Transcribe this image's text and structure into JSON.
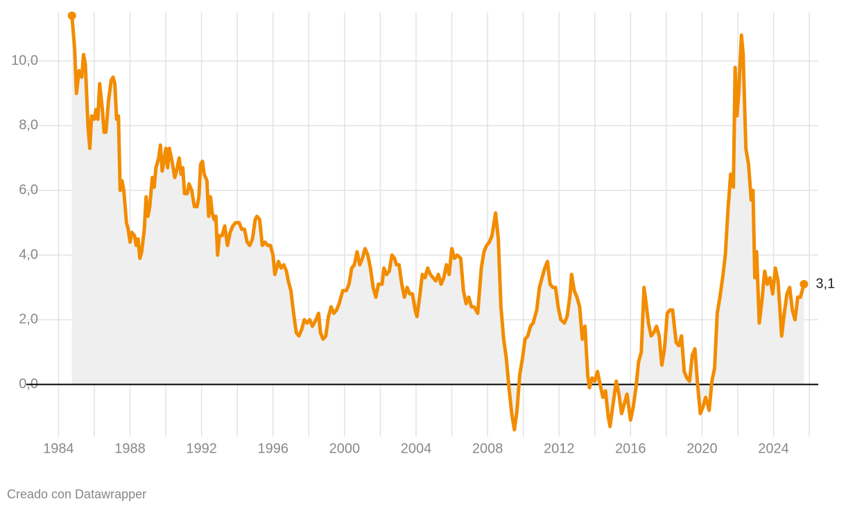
{
  "chart_data": {
    "type": "area-line",
    "x": [
      1984.75,
      1984.9,
      1985.0,
      1985.15,
      1985.3,
      1985.4,
      1985.5,
      1985.65,
      1985.75,
      1985.85,
      1986.0,
      1986.1,
      1986.2,
      1986.3,
      1986.45,
      1986.55,
      1986.65,
      1986.8,
      1986.95,
      1987.05,
      1987.15,
      1987.25,
      1987.35,
      1987.45,
      1987.55,
      1987.65,
      1987.8,
      1987.9,
      1988.0,
      1988.1,
      1988.25,
      1988.35,
      1988.45,
      1988.55,
      1988.65,
      1988.8,
      1988.9,
      1989.0,
      1989.1,
      1989.25,
      1989.35,
      1989.45,
      1989.6,
      1989.7,
      1989.8,
      1989.9,
      1990.0,
      1990.1,
      1990.2,
      1990.35,
      1990.5,
      1990.6,
      1990.75,
      1990.85,
      1990.95,
      1991.05,
      1991.2,
      1991.3,
      1991.45,
      1991.6,
      1991.75,
      1991.85,
      1991.95,
      1992.05,
      1992.15,
      1992.3,
      1992.4,
      1992.5,
      1992.6,
      1992.7,
      1992.8,
      1992.9,
      1993.0,
      1993.15,
      1993.3,
      1993.45,
      1993.6,
      1993.75,
      1993.9,
      1994.1,
      1994.25,
      1994.4,
      1994.55,
      1994.7,
      1994.85,
      1995.0,
      1995.1,
      1995.25,
      1995.4,
      1995.55,
      1995.7,
      1995.85,
      1996.0,
      1996.1,
      1996.2,
      1996.3,
      1996.45,
      1996.6,
      1996.75,
      1996.85,
      1997.0,
      1997.15,
      1997.3,
      1997.45,
      1997.6,
      1997.75,
      1997.9,
      1998.05,
      1998.2,
      1998.4,
      1998.55,
      1998.65,
      1998.8,
      1998.95,
      1999.1,
      1999.25,
      1999.4,
      1999.55,
      1999.7,
      1999.9,
      2000.1,
      2000.25,
      2000.4,
      2000.55,
      2000.7,
      2000.85,
      2001.0,
      2001.15,
      2001.3,
      2001.45,
      2001.6,
      2001.75,
      2001.9,
      2002.1,
      2002.2,
      2002.35,
      2002.5,
      2002.65,
      2002.8,
      2002.9,
      2003.05,
      2003.2,
      2003.35,
      2003.5,
      2003.65,
      2003.8,
      2003.95,
      2004.05,
      2004.2,
      2004.35,
      2004.5,
      2004.65,
      2004.8,
      2004.95,
      2005.1,
      2005.25,
      2005.4,
      2005.55,
      2005.7,
      2005.85,
      2006.0,
      2006.15,
      2006.3,
      2006.5,
      2006.65,
      2006.8,
      2006.95,
      2007.1,
      2007.25,
      2007.45,
      2007.65,
      2007.8,
      2007.95,
      2008.1,
      2008.25,
      2008.45,
      2008.6,
      2008.75,
      2008.9,
      2009.05,
      2009.2,
      2009.35,
      2009.5,
      2009.65,
      2009.8,
      2009.95,
      2010.1,
      2010.25,
      2010.4,
      2010.55,
      2010.75,
      2010.9,
      2011.05,
      2011.2,
      2011.35,
      2011.5,
      2011.65,
      2011.8,
      2011.95,
      2012.1,
      2012.3,
      2012.45,
      2012.6,
      2012.7,
      2012.85,
      2013.0,
      2013.15,
      2013.3,
      2013.45,
      2013.6,
      2013.7,
      2013.85,
      2014.0,
      2014.15,
      2014.3,
      2014.45,
      2014.6,
      2014.75,
      2014.85,
      2015.0,
      2015.2,
      2015.35,
      2015.5,
      2015.65,
      2015.8,
      2016.0,
      2016.15,
      2016.3,
      2016.45,
      2016.6,
      2016.75,
      2016.85,
      2017.0,
      2017.15,
      2017.3,
      2017.45,
      2017.6,
      2017.75,
      2017.9,
      2018.05,
      2018.2,
      2018.35,
      2018.55,
      2018.7,
      2018.85,
      2019.0,
      2019.15,
      2019.3,
      2019.45,
      2019.6,
      2019.75,
      2019.9,
      2020.05,
      2020.2,
      2020.4,
      2020.55,
      2020.7,
      2020.85,
      2021.0,
      2021.15,
      2021.3,
      2021.45,
      2021.6,
      2021.75,
      2021.85,
      2021.95,
      2022.05,
      2022.2,
      2022.3,
      2022.45,
      2022.6,
      2022.75,
      2022.85,
      2022.95,
      2023.05,
      2023.2,
      2023.35,
      2023.5,
      2023.65,
      2023.8,
      2023.95,
      2024.1,
      2024.25,
      2024.45,
      2024.6,
      2024.75,
      2024.9,
      2025.05,
      2025.2,
      2025.35,
      2025.5,
      2025.7
    ],
    "values": [
      11.4,
      10.4,
      9.0,
      9.7,
      9.5,
      10.2,
      9.9,
      8.0,
      7.3,
      8.3,
      8.2,
      8.5,
      8.2,
      9.3,
      8.5,
      7.8,
      7.8,
      8.8,
      9.4,
      9.5,
      9.3,
      8.2,
      8.3,
      6.0,
      6.3,
      6.0,
      5.0,
      4.8,
      4.4,
      4.7,
      4.6,
      4.3,
      4.5,
      3.9,
      4.1,
      4.8,
      5.8,
      5.2,
      5.5,
      6.4,
      6.1,
      6.7,
      7.0,
      7.4,
      6.6,
      6.9,
      7.3,
      6.7,
      7.3,
      6.9,
      6.4,
      6.6,
      7.0,
      6.5,
      6.7,
      5.9,
      5.9,
      6.2,
      6.0,
      5.5,
      5.5,
      5.8,
      6.8,
      6.9,
      6.5,
      6.3,
      5.2,
      5.8,
      5.3,
      5.1,
      5.2,
      4.0,
      4.6,
      4.6,
      4.9,
      4.3,
      4.7,
      4.9,
      5.0,
      5.0,
      4.8,
      4.8,
      4.4,
      4.3,
      4.5,
      5.1,
      5.2,
      5.1,
      4.3,
      4.4,
      4.3,
      4.3,
      4.0,
      3.4,
      3.6,
      3.8,
      3.6,
      3.7,
      3.5,
      3.2,
      2.9,
      2.2,
      1.6,
      1.5,
      1.7,
      2.0,
      1.9,
      2.0,
      1.8,
      2.0,
      2.2,
      1.6,
      1.4,
      1.5,
      2.1,
      2.4,
      2.2,
      2.3,
      2.5,
      2.9,
      2.9,
      3.1,
      3.6,
      3.7,
      4.1,
      3.7,
      3.9,
      4.2,
      4.0,
      3.6,
      3.0,
      2.7,
      3.1,
      3.1,
      3.6,
      3.4,
      3.5,
      4.0,
      3.9,
      3.7,
      3.7,
      3.1,
      2.7,
      3.0,
      2.8,
      2.8,
      2.3,
      2.1,
      2.7,
      3.4,
      3.3,
      3.6,
      3.4,
      3.3,
      3.2,
      3.4,
      3.1,
      3.3,
      3.7,
      3.4,
      4.2,
      3.9,
      4.0,
      3.9,
      2.9,
      2.5,
      2.7,
      2.4,
      2.4,
      2.2,
      3.6,
      4.1,
      4.3,
      4.4,
      4.6,
      5.3,
      4.5,
      2.4,
      1.4,
      0.8,
      -0.1,
      -0.9,
      -1.4,
      -0.8,
      0.3,
      0.8,
      1.4,
      1.5,
      1.8,
      1.9,
      2.3,
      3.0,
      3.3,
      3.6,
      3.8,
      3.1,
      3.0,
      3.0,
      2.4,
      2.0,
      1.9,
      2.1,
      2.7,
      3.4,
      2.9,
      2.7,
      2.4,
      1.4,
      1.8,
      0.3,
      -0.1,
      0.2,
      0.1,
      0.4,
      0.0,
      -0.4,
      -0.2,
      -1.0,
      -1.3,
      -0.7,
      0.1,
      -0.3,
      -0.9,
      -0.6,
      -0.3,
      -1.1,
      -0.7,
      -0.1,
      0.7,
      1.0,
      3.0,
      2.6,
      1.9,
      1.5,
      1.6,
      1.8,
      1.5,
      0.6,
      1.1,
      2.2,
      2.3,
      2.3,
      1.3,
      1.2,
      1.5,
      0.4,
      0.2,
      0.1,
      0.9,
      1.1,
      0.0,
      -0.9,
      -0.7,
      -0.4,
      -0.8,
      0.1,
      0.5,
      2.2,
      2.7,
      3.3,
      4.0,
      5.4,
      6.5,
      6.1,
      9.8,
      8.3,
      9.0,
      10.8,
      10.2,
      7.3,
      6.8,
      5.7,
      6.0,
      3.3,
      4.1,
      1.9,
      2.6,
      3.5,
      3.1,
      3.3,
      2.8,
      3.6,
      3.2,
      1.5,
      2.2,
      2.8,
      3.0,
      2.3,
      2.0,
      2.7,
      2.7,
      3.1
    ],
    "last_value_label": "3,1",
    "color": "#f28c00",
    "area_color": "#efefef",
    "xlim": [
      1982.2,
      2026.5
    ],
    "xticks": [
      1984,
      1988,
      1992,
      1996,
      2000,
      2004,
      2008,
      2012,
      2016,
      2020,
      2024
    ],
    "xgrid": [
      1984,
      1986,
      1988,
      1990,
      1992,
      1994,
      1996,
      1998,
      2000,
      2002,
      2004,
      2006,
      2008,
      2010,
      2012,
      2014,
      2016,
      2018,
      2020,
      2022,
      2024,
      2026
    ],
    "ylim": [
      -1.4,
      11.5
    ],
    "yticks": [
      {
        "value": 0,
        "label": "0,0"
      },
      {
        "value": 2,
        "label": "2,0"
      },
      {
        "value": 4,
        "label": "4,0"
      },
      {
        "value": 6,
        "label": "6,0"
      },
      {
        "value": 8,
        "label": "8,0"
      },
      {
        "value": 10,
        "label": "10,0"
      }
    ],
    "grid": true,
    "footer": "Creado con Datawrapper"
  }
}
